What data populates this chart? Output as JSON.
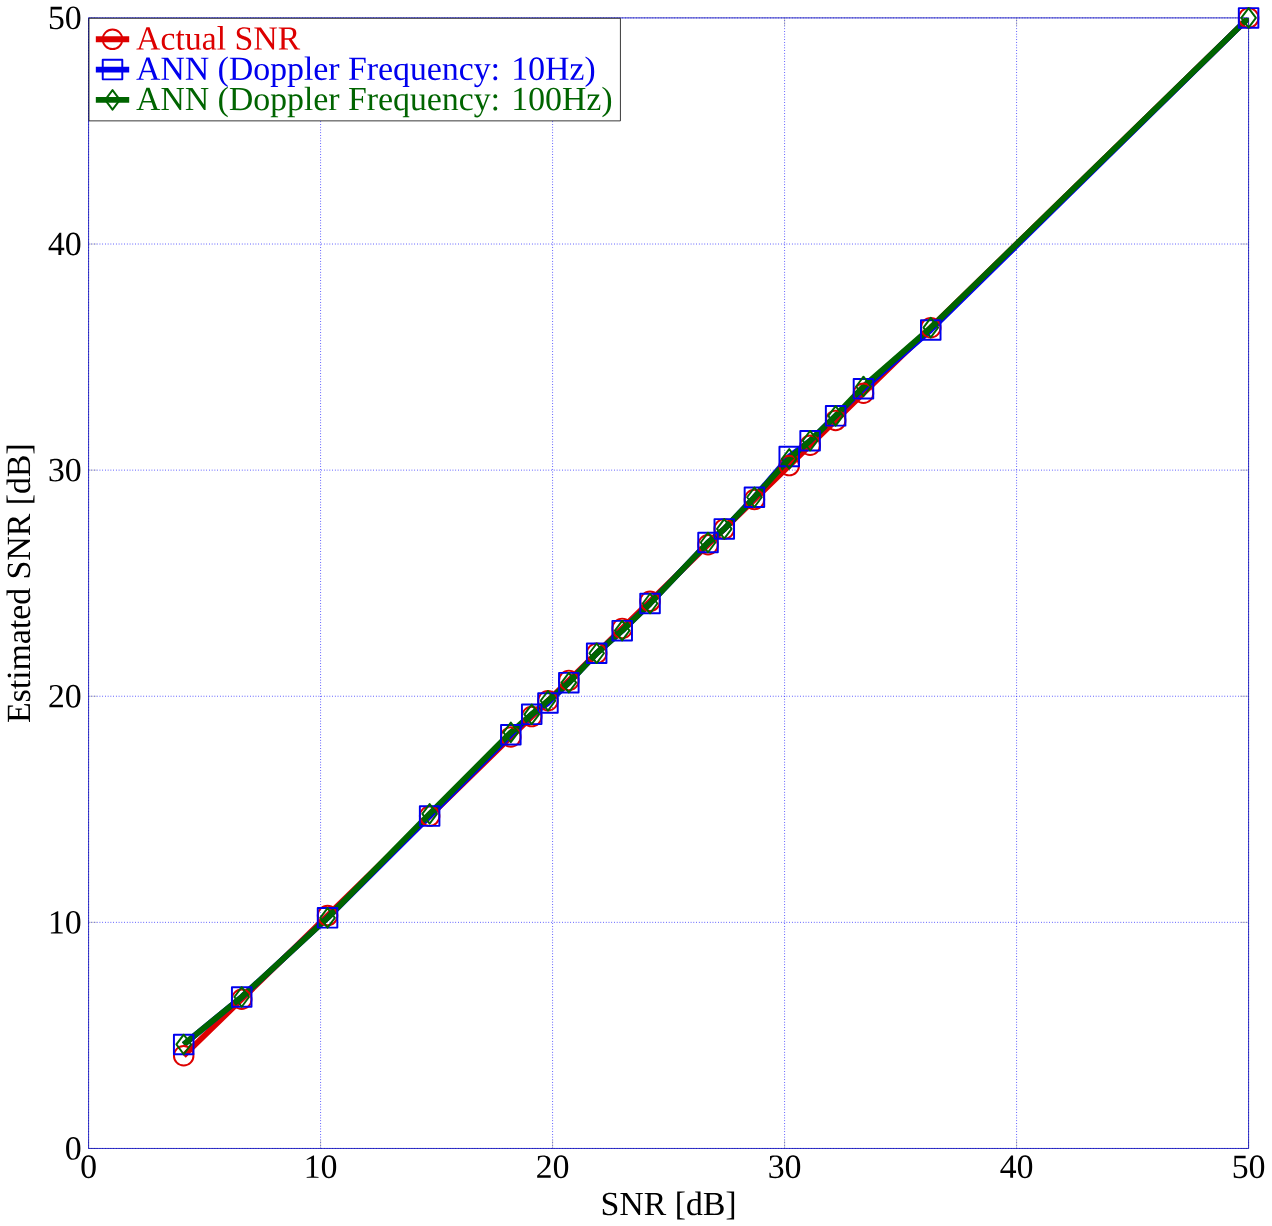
{
  "chart_data": {
    "type": "line",
    "xlabel": "SNR [dB]",
    "ylabel": "Estimated SNR [dB]",
    "x": [
      4.1,
      6.6,
      10.3,
      14.7,
      18.2,
      19.1,
      19.8,
      20.7,
      21.9,
      23.0,
      24.2,
      26.7,
      27.4,
      28.7,
      30.2,
      31.1,
      32.2,
      33.4,
      36.3,
      50
    ],
    "series": [
      {
        "name": "Actual SNR",
        "color": "#dd0000",
        "marker": "circle",
        "values": [
          4.1,
          6.6,
          10.3,
          14.7,
          18.2,
          19.1,
          19.8,
          20.7,
          21.9,
          23.0,
          24.2,
          26.7,
          27.4,
          28.7,
          30.2,
          31.1,
          32.2,
          33.4,
          36.3,
          50
        ]
      },
      {
        "name": "ANN (Doppler Frequency: 10Hz)",
        "color": "#0000ee",
        "marker": "square",
        "values": [
          4.6,
          6.7,
          10.2,
          14.7,
          18.3,
          19.2,
          19.7,
          20.6,
          21.9,
          22.9,
          24.1,
          26.8,
          27.4,
          28.8,
          30.6,
          31.3,
          32.4,
          33.6,
          36.2,
          50
        ]
      },
      {
        "name": "ANN (Doppler Frequency: 100Hz)",
        "color": "#006400",
        "marker": "diamond",
        "values": [
          4.6,
          6.7,
          10.2,
          14.8,
          18.4,
          19.2,
          19.8,
          20.6,
          21.9,
          22.9,
          24.1,
          26.8,
          27.4,
          28.8,
          30.5,
          31.3,
          32.4,
          33.7,
          36.3,
          50
        ]
      }
    ],
    "xlim": [
      0,
      50
    ],
    "ylim": [
      0,
      50
    ],
    "xticks": [
      0,
      10,
      20,
      30,
      40,
      50
    ],
    "yticks": [
      0,
      10,
      20,
      30,
      40,
      50
    ],
    "grid": true,
    "legend": "top left",
    "line_style": "solid"
  }
}
